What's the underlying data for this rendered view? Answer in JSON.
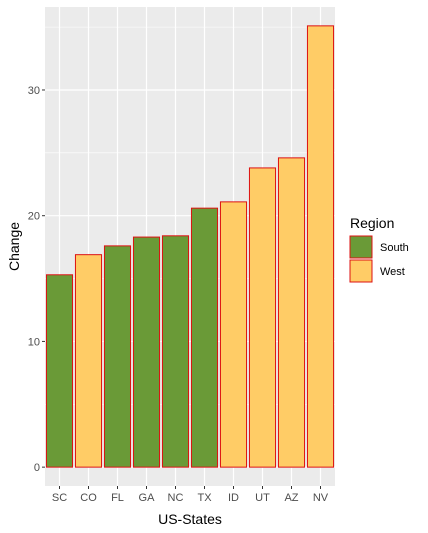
{
  "chart_data": {
    "type": "bar",
    "title": "",
    "xlabel": "US-States",
    "ylabel": "Change",
    "categories": [
      "SC",
      "CO",
      "FL",
      "GA",
      "NC",
      "TX",
      "ID",
      "UT",
      "AZ",
      "NV"
    ],
    "values": [
      15.3,
      16.9,
      17.6,
      18.3,
      18.4,
      20.6,
      21.1,
      23.8,
      24.6,
      35.1
    ],
    "region": [
      "South",
      "West",
      "South",
      "South",
      "South",
      "South",
      "West",
      "West",
      "West",
      "West"
    ],
    "ylim": [
      -1.5,
      36.6
    ],
    "yticks": [
      0,
      10,
      20,
      30
    ],
    "grid": true,
    "legend": {
      "title": "Region",
      "placement": "right",
      "entries": [
        {
          "name": "South",
          "color": "#6a9a37"
        },
        {
          "name": "West",
          "color": "#ffcc66"
        }
      ]
    },
    "bar_outline_color": "#dd1111",
    "panel_background": "#ebebeb",
    "gridline_color": "#ffffff"
  }
}
